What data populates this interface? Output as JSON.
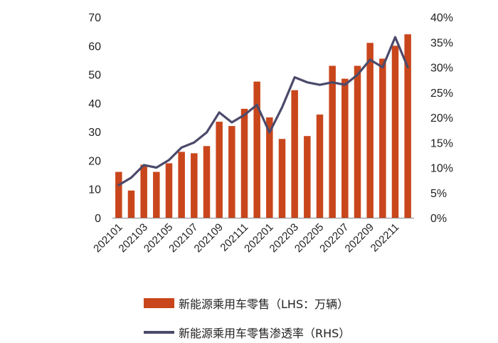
{
  "chart_data": {
    "type": "bar+line",
    "categories": [
      "202101",
      "202102",
      "202103",
      "202104",
      "202105",
      "202106",
      "202107",
      "202108",
      "202109",
      "202110",
      "202111",
      "202112",
      "202201",
      "202202",
      "202203",
      "202204",
      "202205",
      "202206",
      "202207",
      "202208",
      "202209",
      "202210",
      "202211",
      "202212"
    ],
    "x_tick_labels": [
      "202101",
      "202103",
      "202105",
      "202107",
      "202109",
      "202111",
      "202201",
      "202203",
      "202205",
      "202207",
      "202209",
      "202211"
    ],
    "series": [
      {
        "name": "新能源乘用车零售（LHS：万辆）",
        "type": "bar",
        "axis": "left",
        "color": "#C9461C",
        "values": [
          16,
          9.5,
          18.5,
          16,
          19,
          23,
          22.5,
          25,
          33.5,
          32,
          38,
          47.5,
          35,
          27.5,
          44.5,
          28.5,
          36,
          53,
          48.5,
          53,
          61,
          55.5,
          60,
          64
        ]
      },
      {
        "name": "新能源乘用车零售渗透率（RHS）",
        "type": "line",
        "axis": "right",
        "color": "#4B4A6B",
        "values": [
          6.5,
          8,
          10.5,
          10,
          11.5,
          14,
          15,
          17,
          21,
          19,
          20.5,
          22.5,
          17,
          22,
          28,
          27,
          26.5,
          27,
          26.5,
          28.5,
          31.5,
          30,
          36,
          30
        ]
      }
    ],
    "left_axis": {
      "ylim": [
        0,
        70
      ],
      "ticks": [
        "0",
        "10",
        "20",
        "30",
        "40",
        "50",
        "60",
        "70"
      ]
    },
    "right_axis": {
      "ylim": [
        0,
        40
      ],
      "ticks": [
        "0%",
        "5%",
        "10%",
        "15%",
        "20%",
        "25%",
        "30%",
        "35%",
        "40%"
      ]
    },
    "legend": {
      "position": "bottom",
      "items": [
        "新能源乘用车零售（LHS：万辆）",
        "新能源乘用车零售渗透率（RHS）"
      ]
    },
    "grid": false
  }
}
